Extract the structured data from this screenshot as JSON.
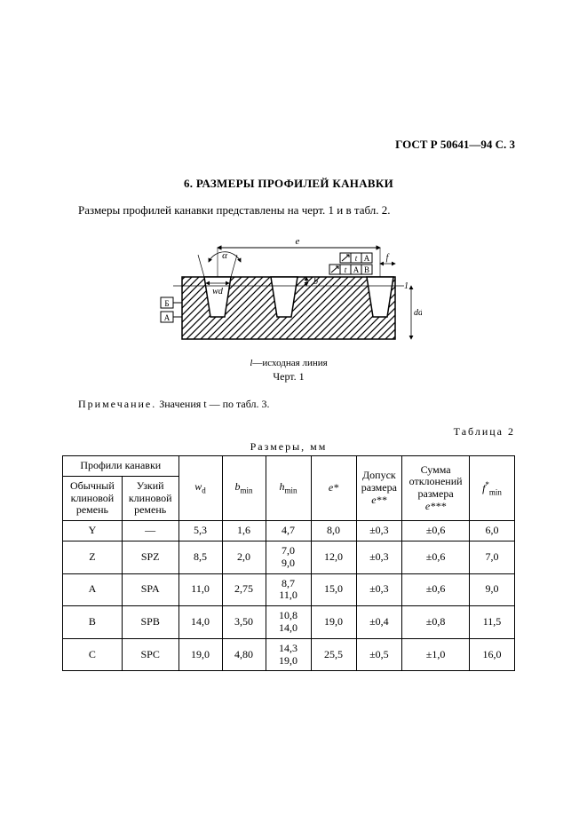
{
  "header": "ГОСТ Р 50641—94 С. 3",
  "section_num": "6.",
  "section_title": "РАЗМЕРЫ ПРОФИЛЕЙ КАНАВКИ",
  "intro": "Размеры профилей канавки представлены на черт. 1 и в табл. 2.",
  "figure": {
    "caption_prefix": "l",
    "caption": "—исходная линия",
    "label": "Черт. 1",
    "labels": {
      "e": "e",
      "alpha": "α",
      "wd": "wd",
      "b": "b",
      "f": "f",
      "dd": "dd",
      "t": "t",
      "A": "A",
      "B": "B",
      "one": "1"
    }
  },
  "note_prefix": "Примечание.",
  "note_body": "Значения t — по табл. 3.",
  "table": {
    "label": "Таблица 2",
    "caption": "Размеры, мм",
    "head": {
      "profiles": "Профили канавки",
      "col1": "Обычный клиновой ремень",
      "col2": "Узкий клиновой ремень",
      "wd": "w",
      "wd_sub": "d",
      "b": "b",
      "b_sub": "min",
      "h": "h",
      "h_sub": "min",
      "e": "e*",
      "tol_e": "Допуск размера",
      "tol_e_sym": "e**",
      "sum": "Сумма отклонений размера",
      "sum_sym": "e***",
      "f": "f",
      "f_sub": "min",
      "f_sup": "*"
    },
    "rows": [
      {
        "c1": "Y",
        "c2": "—",
        "wd": "5,3",
        "b": "1,6",
        "h": "4,7",
        "e": "8,0",
        "te": "±0,3",
        "se": "±0,6",
        "f": "6,0"
      },
      {
        "c1": "Z",
        "c2": "SPZ",
        "wd": "8,5",
        "b": "2,0",
        "h1": "7,0",
        "h2": "9,0",
        "e": "12,0",
        "te": "±0,3",
        "se": "±0,6",
        "f": "7,0"
      },
      {
        "c1": "A",
        "c2": "SPA",
        "wd": "11,0",
        "b": "2,75",
        "h1": "8,7",
        "h2": "11,0",
        "e": "15,0",
        "te": "±0,3",
        "se": "±0,6",
        "f": "9,0"
      },
      {
        "c1": "B",
        "c2": "SPB",
        "wd": "14,0",
        "b": "3,50",
        "h1": "10,8",
        "h2": "14,0",
        "e": "19,0",
        "te": "±0,4",
        "se": "±0,8",
        "f": "11,5"
      },
      {
        "c1": "C",
        "c2": "SPC",
        "wd": "19,0",
        "b": "4,80",
        "h1": "14,3",
        "h2": "19,0",
        "e": "25,5",
        "te": "±0,5",
        "se": "±1,0",
        "f": "16,0"
      }
    ]
  }
}
